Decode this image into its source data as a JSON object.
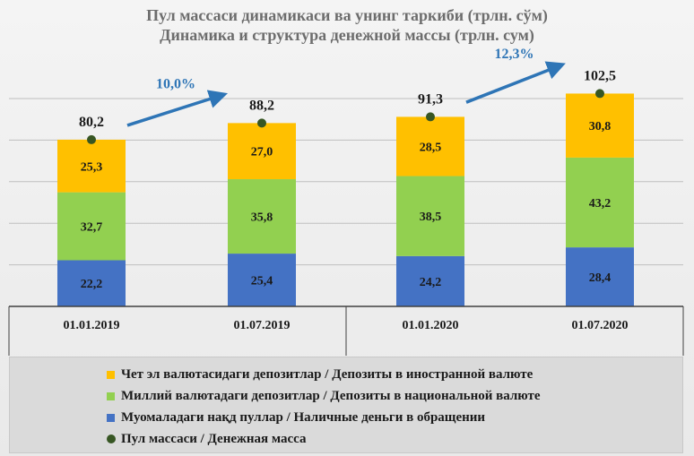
{
  "title_line1": "Пул массаси динамикаси ва унинг таркиби (трлн. сўм)",
  "title_line2": "Динамика и структура денежной массы (трлн. сум)",
  "chart_data": {
    "type": "bar",
    "stacked": true,
    "categories": [
      "01.01.2019",
      "01.07.2019",
      "01.01.2020",
      "01.07.2020"
    ],
    "series": [
      {
        "name": "Муомаладаги нақд пуллар / Наличные деньги в обращении",
        "color": "#4472c4",
        "values": [
          22.2,
          25.4,
          24.2,
          28.4
        ],
        "labels": [
          "22,2",
          "25,4",
          "24,2",
          "28,4"
        ]
      },
      {
        "name": "Миллий валютадаги депозитлар / Депозиты в национальной валюте",
        "color": "#92d050",
        "values": [
          32.7,
          35.8,
          38.5,
          43.2
        ],
        "labels": [
          "32,7",
          "35,8",
          "38,5",
          "43,2"
        ]
      },
      {
        "name": "Чет эл валютасидаги депозитлар / Депозиты в иностранной валюте",
        "color": "#ffc000",
        "values": [
          25.3,
          27.0,
          28.5,
          30.8
        ],
        "labels": [
          "25,3",
          "27,0",
          "28,5",
          "30,8"
        ]
      }
    ],
    "totals": {
      "name": "Пул массаси / Денежная масса",
      "color": "#375623",
      "values": [
        80.2,
        88.2,
        91.3,
        102.5
      ],
      "labels": [
        "80,2",
        "88,2",
        "91,3",
        "102,5"
      ]
    },
    "growth_annotations": [
      {
        "text": "10,0%",
        "from": 0,
        "to": 1,
        "color": "#2e75b6"
      },
      {
        "text": "12,3%",
        "from": 2,
        "to": 3,
        "color": "#2e75b6"
      }
    ],
    "ylim": [
      0,
      110
    ],
    "grid": true,
    "legend_position": "bottom"
  },
  "legend": [
    {
      "label": "Чет эл валютасидаги депозитлар / Депозиты в иностранной валюте",
      "color": "#ffc000",
      "shape": "square"
    },
    {
      "label": "Миллий валютадаги депозитлар / Депозиты в национальной валюте",
      "color": "#92d050",
      "shape": "square"
    },
    {
      "label": "Муомаладаги нақд пуллар / Наличные деньги в обращении",
      "color": "#4472c4",
      "shape": "square"
    },
    {
      "label": "Пул массаси / Денежная масса",
      "color": "#375623",
      "shape": "circle"
    }
  ]
}
